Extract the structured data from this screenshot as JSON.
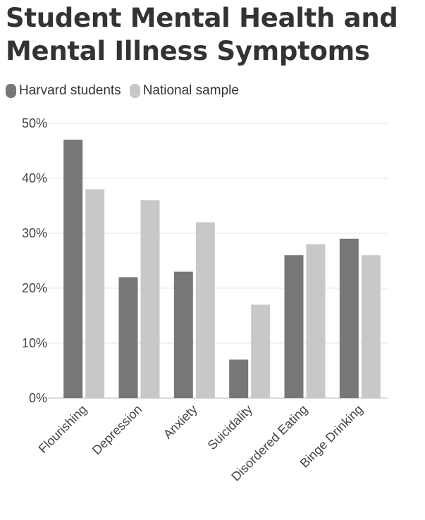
{
  "title": "Student Mental Health and Mental Illness Symptoms",
  "colors": {
    "harvard": "#777777",
    "national": "#c8c8c8",
    "grid": "#e6e6e6",
    "axis": "#cfcfcf"
  },
  "chart_data": {
    "type": "bar",
    "title": "Student Mental Health and Mental Illness Symptoms",
    "categories": [
      "Flourishing",
      "Depression",
      "Anxiety",
      "Suicidality",
      "Disordered Eating",
      "Binge Drinking"
    ],
    "series": [
      {
        "name": "Harvard students",
        "values": [
          47,
          22,
          23,
          7,
          26,
          29
        ]
      },
      {
        "name": "National sample",
        "values": [
          38,
          36,
          32,
          17,
          28,
          26
        ]
      }
    ],
    "ylim": [
      0,
      50
    ],
    "yticks": [
      "0%",
      "10%",
      "20%",
      "30%",
      "40%",
      "50%"
    ],
    "xlabel": "",
    "ylabel": "",
    "grid": true,
    "legend": "top-left"
  }
}
